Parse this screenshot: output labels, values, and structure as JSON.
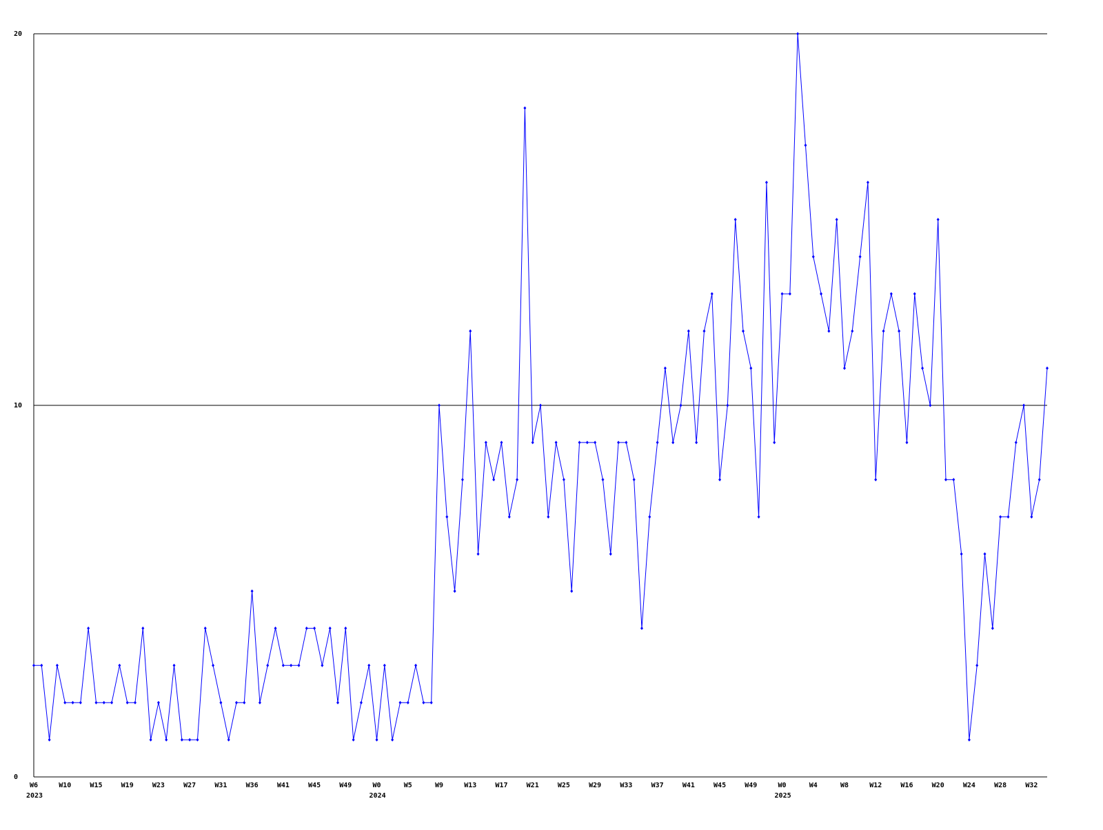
{
  "chart_data": {
    "type": "line",
    "categories": [
      "W6",
      null,
      null,
      null,
      "W10",
      null,
      null,
      null,
      "W15",
      null,
      null,
      null,
      "W19",
      null,
      null,
      null,
      "W23",
      null,
      null,
      null,
      "W27",
      null,
      null,
      null,
      "W31",
      null,
      null,
      null,
      "W36",
      null,
      null,
      null,
      "W41",
      null,
      null,
      null,
      "W45",
      null,
      null,
      null,
      "W49",
      null,
      null,
      null,
      "W0",
      null,
      null,
      null,
      "W5",
      null,
      null,
      null,
      "W9",
      null,
      null,
      null,
      "W13",
      null,
      null,
      null,
      "W17",
      null,
      null,
      null,
      "W21",
      null,
      null,
      null,
      "W25",
      null,
      null,
      null,
      "W29",
      null,
      null,
      null,
      "W33",
      null,
      null,
      null,
      "W37",
      null,
      null,
      null,
      "W41",
      null,
      null,
      null,
      "W45",
      null,
      null,
      null,
      "W49",
      null,
      null,
      null,
      "W0",
      null,
      null,
      null,
      "W4",
      null,
      null,
      null,
      "W8",
      null,
      null,
      null,
      "W12",
      null,
      null,
      null,
      "W16",
      null,
      null,
      null,
      "W20",
      null,
      null,
      null,
      "W24",
      null,
      null,
      null,
      "W28",
      null,
      null,
      null,
      "W32",
      null,
      null
    ],
    "years": [
      "2023",
      null,
      null,
      null,
      null,
      null,
      null,
      null,
      null,
      null,
      null,
      null,
      null,
      null,
      null,
      null,
      null,
      null,
      null,
      null,
      null,
      null,
      null,
      null,
      null,
      null,
      null,
      null,
      null,
      null,
      null,
      null,
      null,
      null,
      null,
      null,
      null,
      null,
      null,
      null,
      null,
      null,
      null,
      null,
      "2024",
      null,
      null,
      null,
      null,
      null,
      null,
      null,
      null,
      null,
      null,
      null,
      null,
      null,
      null,
      null,
      null,
      null,
      null,
      null,
      null,
      null,
      null,
      null,
      null,
      null,
      null,
      null,
      null,
      null,
      null,
      null,
      null,
      null,
      null,
      null,
      null,
      null,
      null,
      null,
      null,
      null,
      null,
      null,
      null,
      null,
      null,
      null,
      null,
      null,
      null,
      null,
      "2025",
      null,
      null,
      null,
      null,
      null,
      null,
      null,
      null,
      null,
      null,
      null,
      null,
      null,
      null,
      null,
      null,
      null,
      null,
      null,
      null,
      null,
      null,
      null,
      null,
      null,
      null,
      null,
      null,
      null,
      null,
      null,
      null,
      null
    ],
    "values": [
      3,
      3,
      1,
      3,
      2,
      2,
      2,
      4,
      2,
      2,
      2,
      3,
      2,
      2,
      4,
      1,
      2,
      1,
      3,
      1,
      1,
      1,
      4,
      3,
      2,
      1,
      2,
      2,
      5,
      2,
      3,
      4,
      3,
      3,
      3,
      4,
      4,
      3,
      4,
      2,
      4,
      1,
      2,
      3,
      1,
      3,
      1,
      2,
      2,
      3,
      2,
      2,
      10,
      7,
      5,
      8,
      12,
      6,
      9,
      8,
      9,
      7,
      8,
      18,
      9,
      10,
      7,
      9,
      8,
      5,
      9,
      9,
      9,
      8,
      6,
      9,
      9,
      8,
      4,
      7,
      9,
      11,
      9,
      10,
      12,
      9,
      12,
      13,
      8,
      10,
      15,
      12,
      11,
      7,
      16,
      9,
      13,
      13,
      20,
      17,
      14,
      13,
      12,
      15,
      11,
      12,
      14,
      16,
      8,
      12,
      13,
      12,
      9,
      13,
      11,
      10,
      15,
      8,
      8,
      6,
      1,
      3,
      6,
      4,
      7,
      7,
      9,
      10,
      7,
      8,
      11
    ],
    "color": "#0000ff",
    "ylim": [
      0,
      20
    ],
    "yticks": [
      0,
      10,
      20
    ],
    "grid": true
  }
}
